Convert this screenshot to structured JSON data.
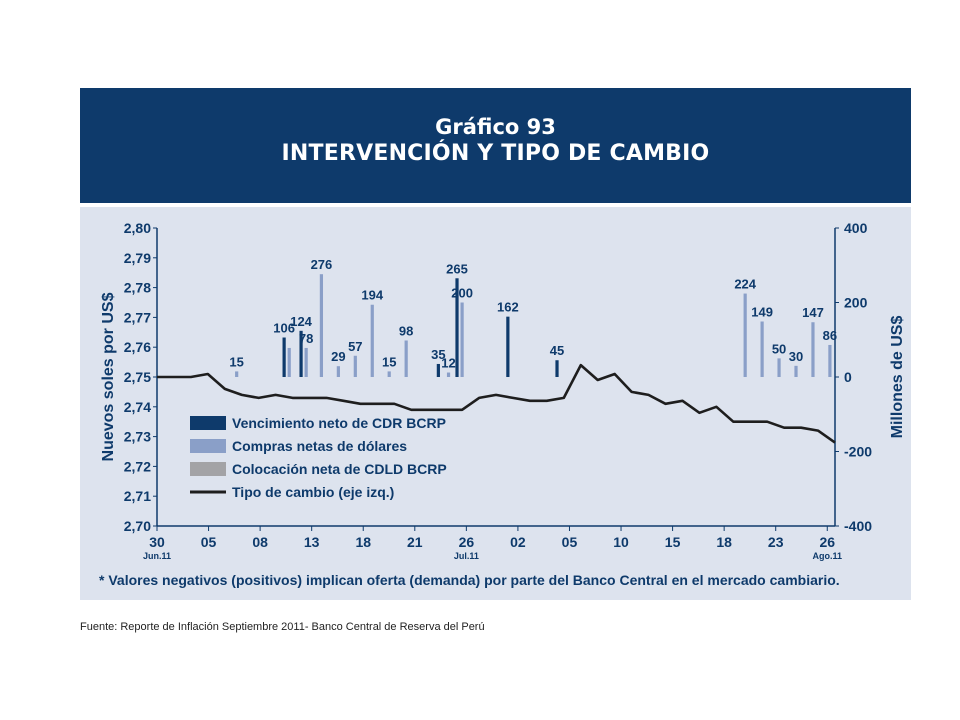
{
  "banner": {
    "title_line1": "Gráfico 93",
    "title_line2": "INTERVENCIÓN Y TIPO DE CAMBIO"
  },
  "footnote": "* Valores negativos (positivos) implican oferta (demanda) por parte del Banco Central en el mercado cambiario.",
  "source": "Fuente: Reporte de Inflación Septiembre 2011- Banco Central de Reserva del Perú",
  "colors": {
    "banner": "#0e3a6b",
    "panel": "#dde3ee",
    "cdr": "#0e3a6b",
    "compras": "#8a9fc8",
    "cdld": "#a3a3a6",
    "line": "#1e1e1e",
    "axis": "#0e3a6b"
  },
  "chart_data": {
    "type": "bar+line",
    "ylabel_left": "Nuevos soles por US$",
    "ylabel_right": "Millones de US$",
    "ylim_left": [
      2.7,
      2.8
    ],
    "ylim_right": [
      -400,
      400
    ],
    "yticks_left": [
      "2,80",
      "2,79",
      "2,78",
      "2,77",
      "2,76",
      "2,75",
      "2,74",
      "2,73",
      "2,72",
      "2,71",
      "2,70"
    ],
    "yticks_right": [
      "400",
      "200",
      "0",
      "-200",
      "-400"
    ],
    "x_ticks": [
      "30",
      "05",
      "08",
      "13",
      "18",
      "21",
      "26",
      "02",
      "05",
      "10",
      "15",
      "18",
      "23",
      "26"
    ],
    "x_subticks": [
      {
        "tick": "30",
        "sub": "Jun.11"
      },
      {
        "tick": "26",
        "sub": "Jul.11"
      },
      {
        "tick": "26",
        "sub": "Ago.11"
      }
    ],
    "legend": [
      {
        "key": "cdr",
        "label": "Vencimiento neto de CDR BCRP"
      },
      {
        "key": "compras",
        "label": "Compras netas de dólares"
      },
      {
        "key": "cdld",
        "label": "Colocación neta de CDLD BCRP"
      },
      {
        "key": "line",
        "label": "Tipo de cambio (eje izq.)"
      }
    ],
    "bars": [
      {
        "t": 4.7,
        "series": "compras",
        "value": 15,
        "label": "15"
      },
      {
        "t": 7.5,
        "series": "cdr",
        "value": 106,
        "label": "106"
      },
      {
        "t": 7.8,
        "series": "compras",
        "value": 78,
        "label": ""
      },
      {
        "t": 8.5,
        "series": "cdr",
        "value": 124,
        "label": "124"
      },
      {
        "t": 8.8,
        "series": "compras",
        "value": 78,
        "label": "78"
      },
      {
        "t": 9.7,
        "series": "compras",
        "value": 276,
        "label": "276"
      },
      {
        "t": 10.7,
        "series": "compras",
        "value": 29,
        "label": "29"
      },
      {
        "t": 11.7,
        "series": "compras",
        "value": 57,
        "label": "57"
      },
      {
        "t": 12.7,
        "series": "compras",
        "value": 194,
        "label": "194"
      },
      {
        "t": 13.7,
        "series": "compras",
        "value": 15,
        "label": "15"
      },
      {
        "t": 14.7,
        "series": "compras",
        "value": 98,
        "label": "98"
      },
      {
        "t": 16.6,
        "series": "cdr",
        "value": 35,
        "label": "35"
      },
      {
        "t": 17.2,
        "series": "compras",
        "value": 12,
        "label": "12"
      },
      {
        "t": 17.7,
        "series": "cdr",
        "value": 265,
        "label": "265"
      },
      {
        "t": 18.0,
        "series": "compras",
        "value": 200,
        "label": "200"
      },
      {
        "t": 20.7,
        "series": "cdr",
        "value": 162,
        "label": "162"
      },
      {
        "t": 23.6,
        "series": "cdr",
        "value": 45,
        "label": "45"
      },
      {
        "t": 34.7,
        "series": "compras",
        "value": 224,
        "label": "224"
      },
      {
        "t": 35.7,
        "series": "compras",
        "value": 149,
        "label": "149"
      },
      {
        "t": 36.7,
        "series": "compras",
        "value": 50,
        "label": "50"
      },
      {
        "t": 37.7,
        "series": "compras",
        "value": 30,
        "label": "30"
      },
      {
        "t": 38.7,
        "series": "compras",
        "value": 147,
        "label": "147"
      },
      {
        "t": 39.7,
        "series": "compras",
        "value": 86,
        "label": "86"
      }
    ],
    "line": [
      [
        0,
        2.75
      ],
      [
        1,
        2.75
      ],
      [
        2,
        2.75
      ],
      [
        3,
        2.751
      ],
      [
        4,
        2.746
      ],
      [
        5,
        2.744
      ],
      [
        6,
        2.743
      ],
      [
        7,
        2.744
      ],
      [
        8,
        2.743
      ],
      [
        9,
        2.743
      ],
      [
        10,
        2.743
      ],
      [
        11,
        2.742
      ],
      [
        12,
        2.741
      ],
      [
        13,
        2.741
      ],
      [
        14,
        2.741
      ],
      [
        15,
        2.739
      ],
      [
        16,
        2.739
      ],
      [
        17,
        2.739
      ],
      [
        18,
        2.739
      ],
      [
        19,
        2.743
      ],
      [
        20,
        2.744
      ],
      [
        21,
        2.743
      ],
      [
        22,
        2.742
      ],
      [
        23,
        2.742
      ],
      [
        24,
        2.743
      ],
      [
        25,
        2.754
      ],
      [
        26,
        2.749
      ],
      [
        27,
        2.751
      ],
      [
        28,
        2.745
      ],
      [
        29,
        2.744
      ],
      [
        30,
        2.741
      ],
      [
        31,
        2.742
      ],
      [
        32,
        2.738
      ],
      [
        33,
        2.74
      ],
      [
        34,
        2.735
      ],
      [
        35,
        2.735
      ],
      [
        36,
        2.735
      ],
      [
        37,
        2.733
      ],
      [
        38,
        2.733
      ],
      [
        39,
        2.732
      ],
      [
        40,
        2.728
      ]
    ]
  }
}
